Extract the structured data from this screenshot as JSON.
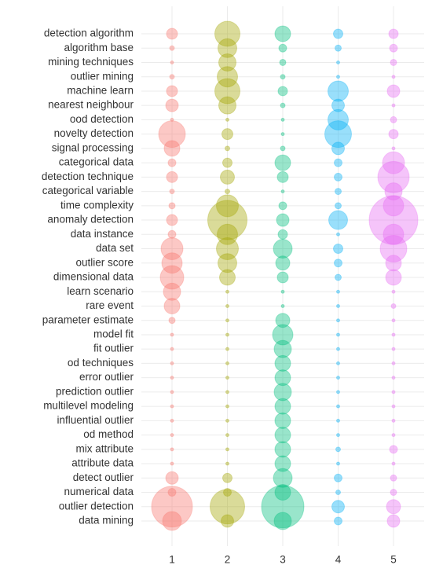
{
  "chart_data": {
    "type": "bubble",
    "categories": [
      "detection algorithm",
      "algorithm base",
      "mining techniques",
      "outlier mining",
      "machine learn",
      "nearest neighbour",
      "ood detection",
      "novelty detection",
      "signal processing",
      "categorical data",
      "detection technique",
      "categorical variable",
      "time complexity",
      "anomaly detection",
      "data instance",
      "data set",
      "outlier score",
      "dimensional data",
      "learn scenario",
      "rare event",
      "parameter estimate",
      "model fit",
      "fit outlier",
      "od techniques",
      "error outlier",
      "prediction outlier",
      "multilevel modeling",
      "influential outlier",
      "od method",
      "mix attribute",
      "attribute data",
      "detect outlier",
      "numerical data",
      "outlier detection",
      "data mining"
    ],
    "series": [
      {
        "name": "1",
        "color": "#F8766D",
        "values": [
          7,
          3,
          2,
          3,
          7,
          8,
          2,
          17,
          10,
          5,
          7,
          3,
          4,
          7,
          5,
          14,
          13,
          15,
          11,
          10,
          4,
          2,
          2,
          2,
          2,
          2,
          2,
          2,
          2,
          2,
          2,
          8,
          5,
          26,
          12
        ]
      },
      {
        "name": "2",
        "color": "#A3A500",
        "values": [
          16,
          12,
          11,
          13,
          16,
          11,
          2,
          7,
          3,
          6,
          9,
          3,
          14,
          25,
          13,
          14,
          12,
          10,
          2,
          2,
          2,
          2,
          2,
          2,
          2,
          2,
          2,
          2,
          2,
          2,
          2,
          6,
          5,
          22,
          8
        ]
      },
      {
        "name": "3",
        "color": "#00BF7D",
        "values": [
          10,
          5,
          4,
          3,
          6,
          3,
          2,
          2,
          3,
          10,
          7,
          2,
          5,
          8,
          6,
          12,
          9,
          7,
          2,
          2,
          9,
          13,
          11,
          10,
          10,
          11,
          10,
          10,
          10,
          10,
          10,
          12,
          10,
          27,
          11
        ]
      },
      {
        "name": "4",
        "color": "#00B0F6",
        "values": [
          6,
          4,
          2,
          2,
          13,
          8,
          13,
          17,
          8,
          5,
          5,
          4,
          4,
          12,
          2,
          6,
          5,
          4,
          2,
          2,
          2,
          2,
          2,
          2,
          2,
          2,
          2,
          2,
          2,
          3,
          2,
          5,
          3,
          8,
          5
        ]
      },
      {
        "name": "5",
        "color": "#E76BF3",
        "values": [
          6,
          5,
          4,
          2,
          8,
          2,
          4,
          6,
          2,
          14,
          20,
          11,
          13,
          31,
          13,
          17,
          10,
          10,
          2,
          3,
          2,
          2,
          2,
          2,
          2,
          2,
          2,
          2,
          2,
          5,
          2,
          4,
          4,
          9,
          8
        ]
      }
    ],
    "grid": true
  }
}
